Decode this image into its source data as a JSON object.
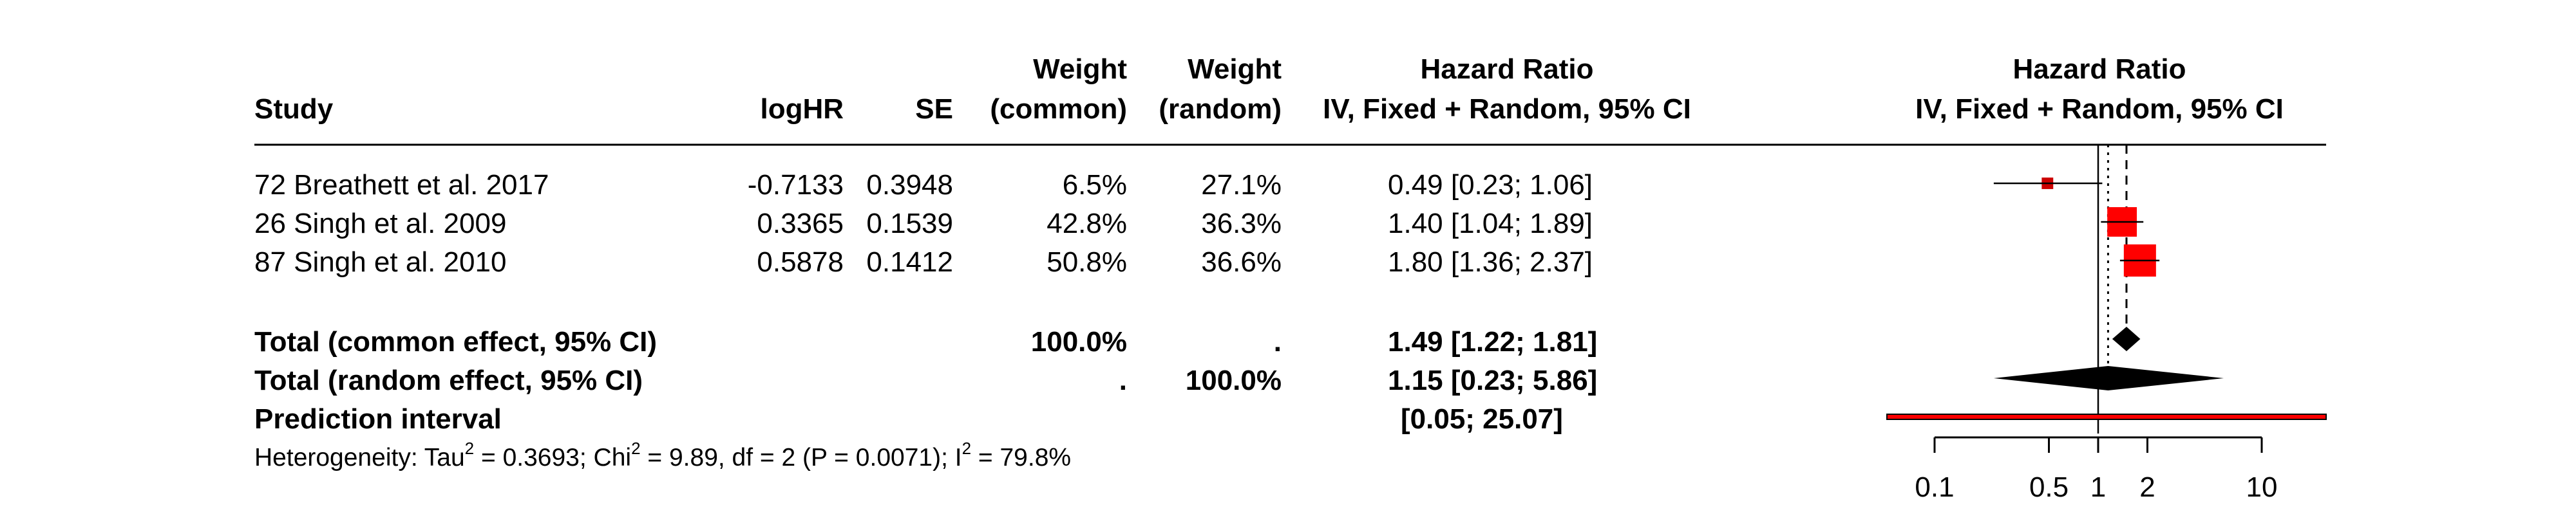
{
  "headers": {
    "study": "Study",
    "loghr": "logHR",
    "se": "SE",
    "weight_common_1": "Weight",
    "weight_common_2": "(common)",
    "weight_random_1": "Weight",
    "weight_random_2": "(random)",
    "hr_1": "Hazard Ratio",
    "hr_2": "IV, Fixed + Random, 95% CI",
    "plot_1": "Hazard Ratio",
    "plot_2": "IV, Fixed + Random, 95% CI"
  },
  "studies": [
    {
      "study": "72 Breathett et al. 2017",
      "loghr": "-0.7133",
      "se": "0.3948",
      "w_common": "6.5%",
      "w_random": "27.1%",
      "hr_ci": "0.49 [0.23;  1.06]"
    },
    {
      "study": "26 Singh et al. 2009",
      "loghr": "0.3365",
      "se": "0.1539",
      "w_common": "42.8%",
      "w_random": "36.3%",
      "hr_ci": "1.40 [1.04;  1.89]"
    },
    {
      "study": "87 Singh et al. 2010",
      "loghr": "0.5878",
      "se": "0.1412",
      "w_common": "50.8%",
      "w_random": "36.6%",
      "hr_ci": "1.80 [1.36;  2.37]"
    }
  ],
  "summary": {
    "common_label": "Total (common effect, 95% CI)",
    "common_w_common": "100.0%",
    "common_w_random": ".",
    "common_hr": "1.49 [1.22;  1.81]",
    "random_label": "Total (random effect, 95% CI)",
    "random_w_common": ".",
    "random_w_random": "100.0%",
    "random_hr": "1.15 [0.23;  5.86]",
    "pred_label": "Prediction interval",
    "pred_ci": "[0.05; 25.07]"
  },
  "heterogeneity": {
    "prefix": "Heterogeneity: Tau",
    "tau_sup": "2",
    "mid1": " = 0.3693; Chi",
    "chi_sup": "2",
    "mid2": " = 9.89, df = 2 (P = 0.0071); I",
    "i_sup": "2",
    "suffix": " = 79.8%"
  },
  "chart_data": {
    "type": "forest",
    "scale": "log",
    "xlim": [
      0.1,
      10
    ],
    "ticks": [
      0.1,
      0.5,
      1,
      2,
      10
    ],
    "tick_labels": [
      "0.1",
      "0.5",
      "1",
      "2",
      "10"
    ],
    "null_value": 1,
    "studies": [
      {
        "name": "72 Breathett et al. 2017",
        "hr": 0.49,
        "lower": 0.23,
        "upper": 1.06,
        "weight": 6.5
      },
      {
        "name": "26 Singh et al. 2009",
        "hr": 1.4,
        "lower": 1.04,
        "upper": 1.89,
        "weight": 42.8
      },
      {
        "name": "87 Singh et al. 2010",
        "hr": 1.8,
        "lower": 1.36,
        "upper": 2.37,
        "weight": 50.8
      }
    ],
    "common_effect": {
      "hr": 1.49,
      "lower": 1.22,
      "upper": 1.81
    },
    "random_effect": {
      "hr": 1.15,
      "lower": 0.23,
      "upper": 5.86
    },
    "prediction_interval": {
      "lower": 0.05,
      "upper": 25.07
    },
    "colors": {
      "square": "#ff0000",
      "square_small": "#cc0000",
      "diamond": "#000000",
      "prediction": "#ff0000"
    }
  }
}
